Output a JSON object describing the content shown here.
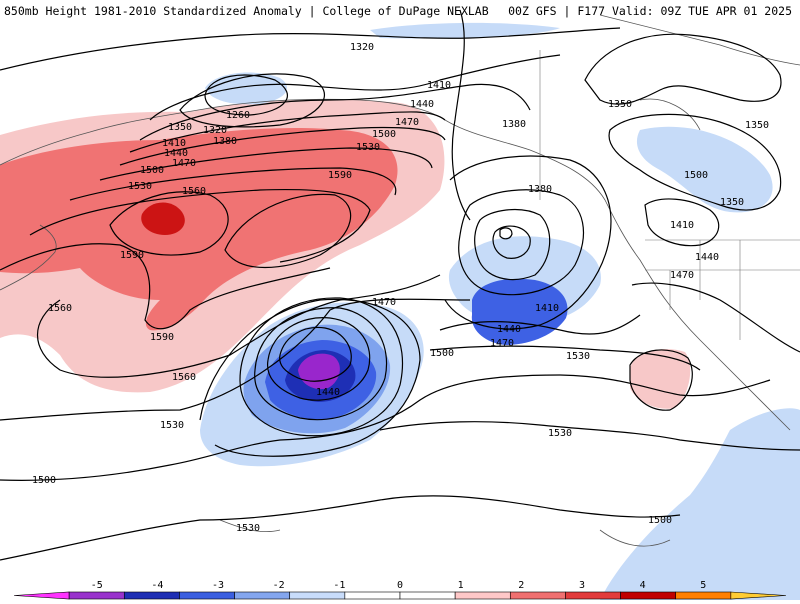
{
  "header": {
    "left_title": "850mb Height 1981-2010 Standardized Anomaly | College of DuPage NEXLAB",
    "right_title": "00Z GFS | F177 Valid: 09Z TUE APR 01 2025"
  },
  "map": {
    "region": "North Pacific",
    "field": "850mb geopotential height (contours, dam) with standardized anomaly shading",
    "contour_labels": [
      "1320",
      "1260",
      "1410",
      "1440",
      "1470",
      "1350",
      "1320",
      "1410",
      "1380",
      "1440",
      "1470",
      "1500",
      "1530",
      "1380",
      "1350",
      "1350",
      "1380",
      "1350",
      "1410",
      "1440",
      "1470",
      "1500",
      "1530",
      "1560",
      "1590",
      "1590",
      "1500",
      "1530",
      "1560",
      "1590",
      "1560",
      "1530",
      "1470",
      "1410",
      "1440",
      "1470",
      "1500",
      "1530",
      "1440",
      "1500",
      "1530",
      "1500",
      "1500",
      "1500"
    ],
    "anomaly_features": [
      {
        "name": "strong positive anomaly",
        "value": 3,
        "color": "#c80000"
      },
      {
        "name": "negative anomaly center",
        "value": -4,
        "color": "#9900cc"
      }
    ]
  },
  "colorbar": {
    "ticks": [
      "-5",
      "-4",
      "-3",
      "-2",
      "-1",
      "0",
      "1",
      "2",
      "3",
      "4",
      "5"
    ],
    "colors": [
      "#ff33ff",
      "#9933cc",
      "#1f2fb4",
      "#3b5fe0",
      "#84a6ee",
      "#c8dcfa",
      "#ffffff",
      "#ffffff",
      "#ffc8c8",
      "#f07070",
      "#e23b3b",
      "#c00000",
      "#ff7f00",
      "#ffcc33"
    ]
  }
}
